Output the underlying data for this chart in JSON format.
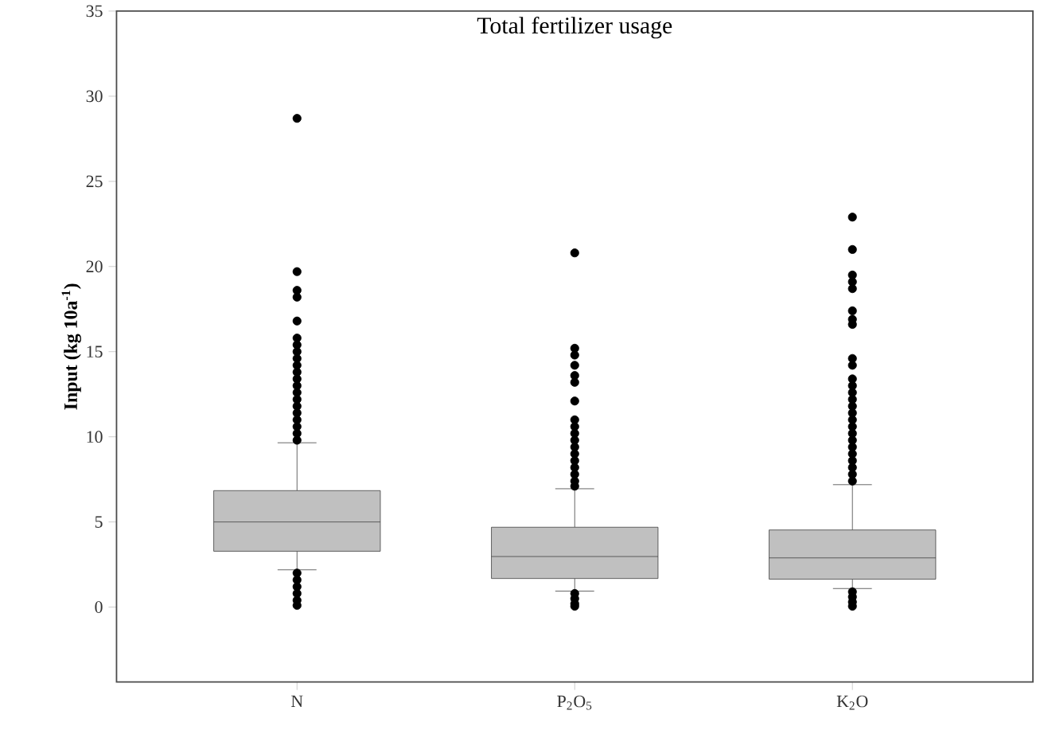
{
  "chart_data": {
    "type": "box",
    "title": "Total fertilizer usage",
    "ylabel": "Input (kg 10a$^{-1}$)",
    "categories": [
      "N",
      "P$_{2}$O$_{5}$",
      "K$_{2}$O"
    ],
    "color": "#c0c0c0",
    "boxes": [
      {
        "low": 2.19,
        "q1": 3.28,
        "median": 5.0,
        "q3": 6.84,
        "high": 9.65,
        "outliers": [
          28.7,
          19.7,
          18.6,
          18.2,
          16.8,
          15.8,
          15.4,
          15.0,
          14.6,
          14.2,
          13.8,
          13.4,
          13.0,
          12.6,
          12.2,
          11.8,
          11.4,
          11.0,
          10.6,
          10.2,
          9.8,
          2.0,
          1.6,
          1.2,
          0.8,
          0.4,
          0.1
        ]
      },
      {
        "low": 0.94,
        "q1": 1.68,
        "median": 2.97,
        "q3": 4.69,
        "high": 6.95,
        "outliers": [
          20.8,
          15.2,
          14.8,
          14.2,
          13.6,
          13.2,
          12.1,
          11.0,
          10.6,
          10.2,
          9.8,
          9.4,
          9.0,
          8.6,
          8.2,
          7.8,
          7.4,
          7.1,
          0.8,
          0.5,
          0.2,
          0.05
        ]
      },
      {
        "low": 1.09,
        "q1": 1.64,
        "median": 2.89,
        "q3": 4.53,
        "high": 7.19,
        "outliers": [
          22.9,
          21.0,
          19.5,
          19.1,
          18.7,
          17.4,
          16.9,
          16.6,
          14.6,
          14.2,
          13.4,
          13.0,
          12.6,
          12.2,
          11.8,
          11.4,
          11.0,
          10.6,
          10.2,
          9.8,
          9.4,
          9.0,
          8.6,
          8.2,
          7.8,
          7.4,
          0.9,
          0.6,
          0.3,
          0.05
        ]
      }
    ],
    "ylim": [
      -4.4,
      35
    ],
    "yticks": [
      0,
      5,
      10,
      15,
      20,
      25,
      30,
      35
    ]
  }
}
